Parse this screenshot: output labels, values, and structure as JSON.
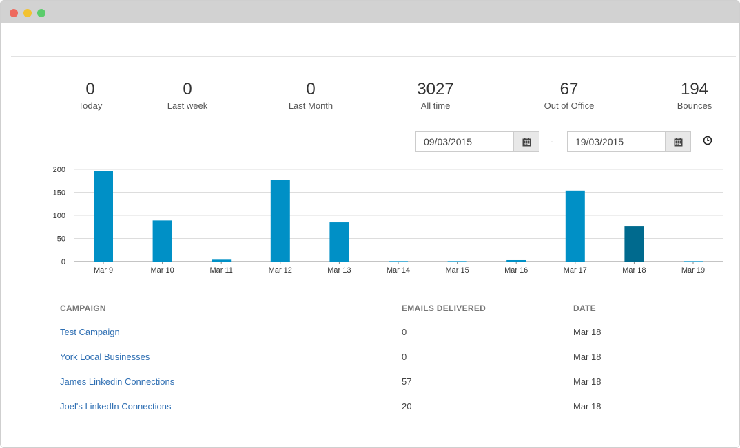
{
  "stats": [
    {
      "value": "0",
      "label": "Today"
    },
    {
      "value": "0",
      "label": "Last week"
    },
    {
      "value": "0",
      "label": "Last Month"
    },
    {
      "value": "3027",
      "label": "All time"
    },
    {
      "value": "67",
      "label": "Out of Office"
    },
    {
      "value": "194",
      "label": "Bounces"
    }
  ],
  "date_range": {
    "from": "09/03/2015",
    "separator": "-",
    "to": "19/03/2015"
  },
  "colors": {
    "bar": "#0090c6",
    "bar_highlight": "#006a8e",
    "link": "#2f6fb3"
  },
  "chart_data": {
    "type": "bar",
    "categories": [
      "Mar 9",
      "Mar 10",
      "Mar 11",
      "Mar 12",
      "Mar 13",
      "Mar 14",
      "Mar 15",
      "Mar 16",
      "Mar 17",
      "Mar 18",
      "Mar 19"
    ],
    "values": [
      197,
      89,
      4,
      177,
      85,
      1,
      1,
      3,
      154,
      76,
      1
    ],
    "highlight_index": 9,
    "ylim": [
      0,
      200
    ],
    "yticks": [
      "0",
      "50",
      "100",
      "150",
      "200"
    ],
    "grid": true
  },
  "table": {
    "headers": {
      "campaign": "CAMPAIGN",
      "delivered": "EMAILS DELIVERED",
      "date": "DATE"
    },
    "rows": [
      {
        "campaign": "Test Campaign",
        "delivered": "0",
        "date": "Mar 18"
      },
      {
        "campaign": "York Local Businesses",
        "delivered": "0",
        "date": "Mar 18"
      },
      {
        "campaign": "James Linkedin Connections",
        "delivered": "57",
        "date": "Mar 18"
      },
      {
        "campaign": "Joel's LinkedIn Connections",
        "delivered": "20",
        "date": "Mar 18"
      }
    ]
  }
}
